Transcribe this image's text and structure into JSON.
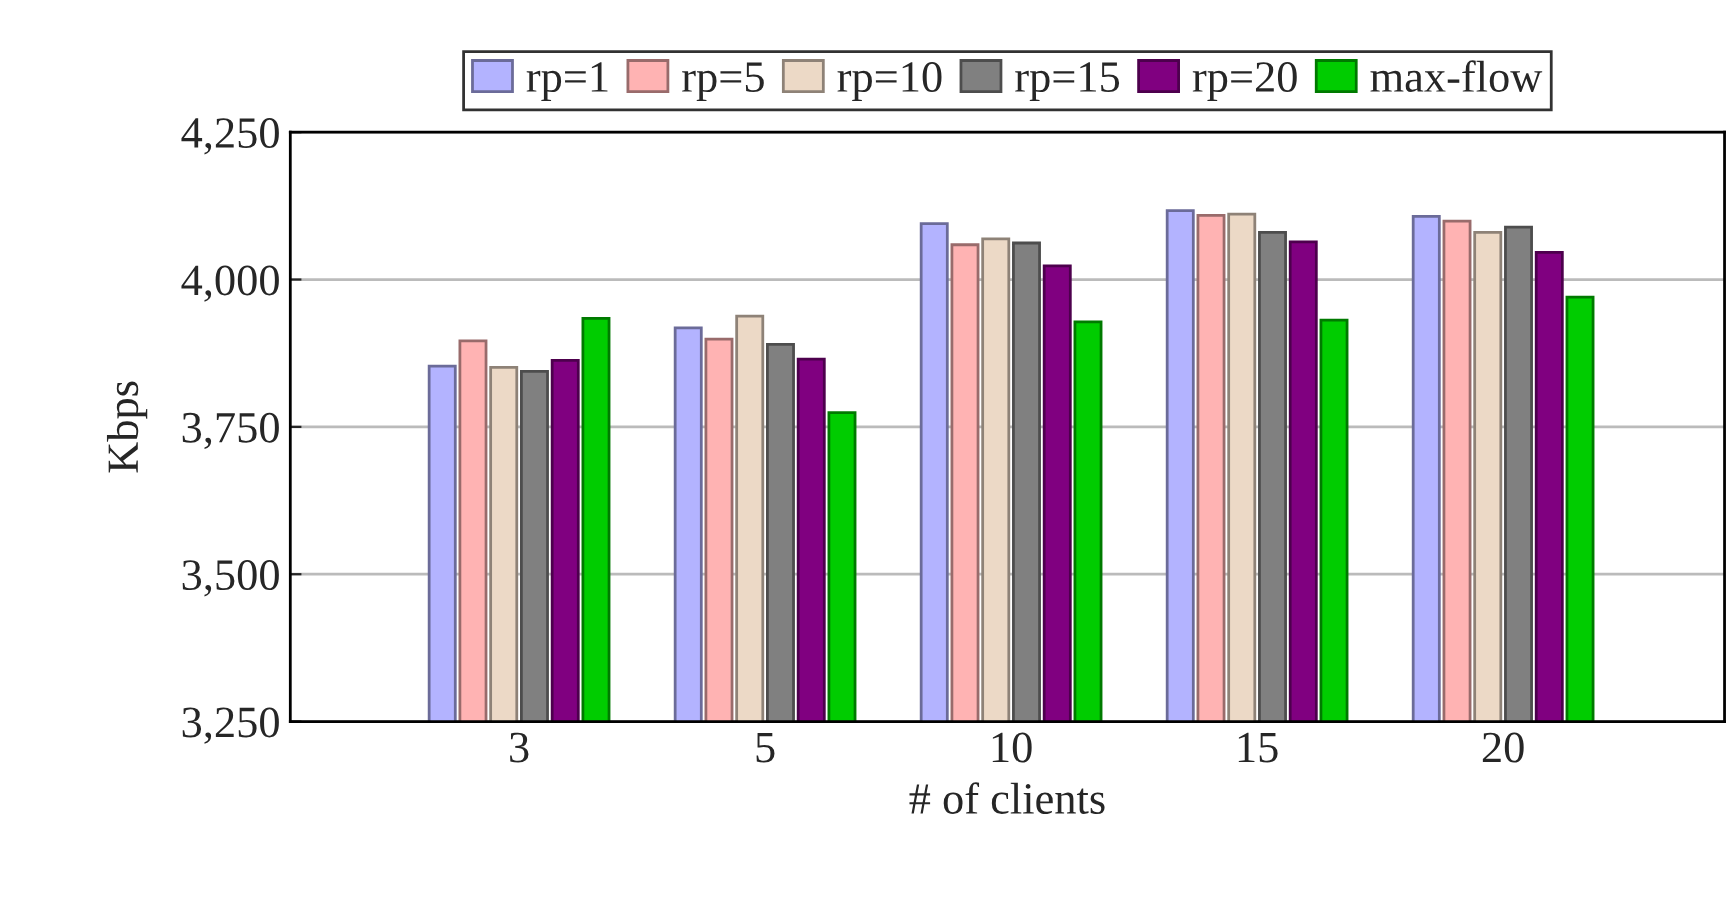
{
  "chart_data": {
    "type": "bar",
    "xlabel": "# of clients",
    "ylabel": "Kbps",
    "categories": [
      "3",
      "5",
      "10",
      "15",
      "20"
    ],
    "series": [
      {
        "name": "rp=1",
        "color": "#b3b3ff",
        "values": [
          3853,
          3918,
          4095,
          4117,
          4107
        ]
      },
      {
        "name": "rp=5",
        "color": "#ffb3b3",
        "values": [
          3896,
          3899,
          4059,
          4109,
          4099
        ]
      },
      {
        "name": "rp=10",
        "color": "#ecd9c6",
        "values": [
          3851,
          3938,
          4069,
          4111,
          4080
        ]
      },
      {
        "name": "rp=15",
        "color": "#808080",
        "values": [
          3844,
          3890,
          4062,
          4080,
          4089
        ]
      },
      {
        "name": "rp=20",
        "color": "#800080",
        "values": [
          3863,
          3865,
          4023,
          4064,
          4046
        ]
      },
      {
        "name": "max-flow",
        "color": "#00cc00",
        "values": [
          3934,
          3774,
          3928,
          3931,
          3970
        ]
      }
    ],
    "ylim": [
      3250,
      4250
    ],
    "yticks": [
      {
        "value": 3250,
        "label": "3,250"
      },
      {
        "value": 3500,
        "label": "3,500"
      },
      {
        "value": 3750,
        "label": "3,750"
      },
      {
        "value": 4000,
        "label": "4,000"
      },
      {
        "value": 4250,
        "label": "4,250"
      }
    ],
    "grid": "y",
    "legend": "top"
  }
}
